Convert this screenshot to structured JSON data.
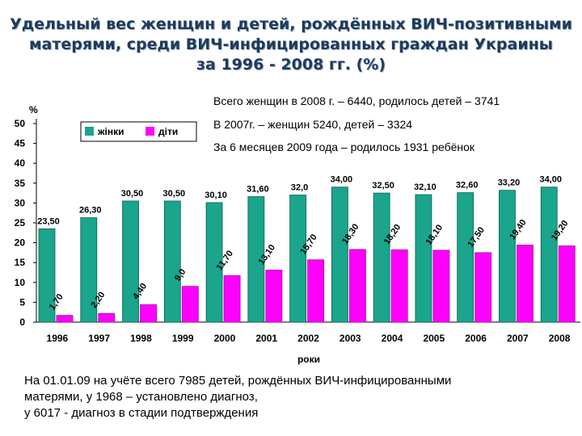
{
  "title": {
    "line1": "Удельный вес женщин и детей, рождённых ВИЧ-позитивными",
    "line2": "матерями, среди ВИЧ-инфицированных граждан Украины",
    "line3": "за 1996 - 2008 гг. (%)"
  },
  "notes": [
    "Всего женщин в 2008 г. – 6440, родилось детей – 3741",
    "В 2007г. – женщин 5240, детей – 3324",
    "За 6 месяцев 2009 года – родилось 1931 ребёнок"
  ],
  "footer": [
    "На 01.01.09 на учёте  всего 7985 детей, рождённых ВИЧ-инфицированными",
    "матерями, у 1968 – установлено диагноз,",
    "у 6017 -  диагноз в стадии подтверждения"
  ],
  "colors": {
    "women": "#1aa58c",
    "children": "#ff00ff",
    "title": "#1f3a5c"
  },
  "chart_data": {
    "type": "bar",
    "ylabel": "%",
    "xlabel": "роки",
    "ylim": [
      0,
      50
    ],
    "yticks": [
      0,
      5,
      10,
      15,
      20,
      25,
      30,
      35,
      40,
      45,
      50
    ],
    "legend_position": "top-left",
    "categories": [
      "1996",
      "1997",
      "1998",
      "1999",
      "2000",
      "2001",
      "2002",
      "2003",
      "2004",
      "2005",
      "2006",
      "2007",
      "2008"
    ],
    "series": [
      {
        "name": "жінки",
        "values": [
          23.5,
          26.3,
          30.5,
          30.5,
          30.1,
          31.6,
          32.0,
          34.0,
          32.5,
          32.1,
          32.6,
          33.2,
          34.0
        ],
        "labels": [
          "23,50",
          "26,30",
          "30,50",
          "30,50",
          "30,10",
          "31,60",
          "32,0",
          "34,00",
          "32,50",
          "32,10",
          "32,60",
          "33,20",
          "34,00"
        ]
      },
      {
        "name": "діти",
        "values": [
          1.7,
          2.2,
          4.4,
          9.0,
          11.7,
          13.1,
          15.7,
          18.3,
          18.2,
          18.1,
          17.5,
          19.4,
          19.2
        ],
        "labels": [
          "1,70",
          "2,20",
          "4,40",
          "9,0",
          "11,70",
          "13,10",
          "15,70",
          "18,30",
          "18,20",
          "18,10",
          "17,50",
          "19,40",
          "19,20"
        ]
      }
    ]
  }
}
